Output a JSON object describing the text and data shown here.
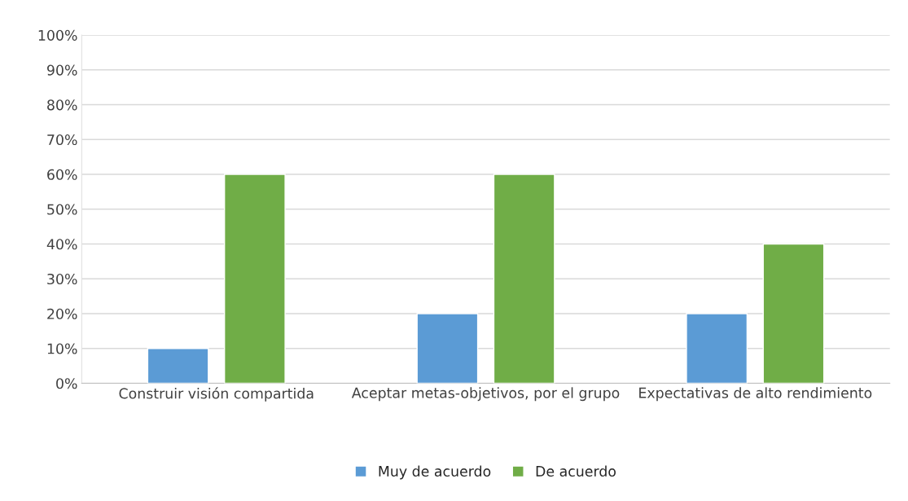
{
  "chart_data": {
    "type": "bar",
    "categories": [
      "Construir visión compartida",
      "Aceptar metas-objetivos, por el grupo",
      "Expectativas de alto rendimiento"
    ],
    "series": [
      {
        "name": "Muy de acuerdo",
        "color": "#5b9bd5",
        "values": [
          10,
          20,
          20
        ]
      },
      {
        "name": "De acuerdo",
        "color": "#70ad47",
        "values": [
          60,
          60,
          40
        ]
      }
    ],
    "ylim": [
      0,
      100
    ],
    "yticks": [
      {
        "value": 0,
        "label": "0%"
      },
      {
        "value": 10,
        "label": "10%"
      },
      {
        "value": 20,
        "label": "20%"
      },
      {
        "value": 30,
        "label": "30%"
      },
      {
        "value": 40,
        "label": "40%"
      },
      {
        "value": 50,
        "label": "50%"
      },
      {
        "value": 60,
        "label": "60%"
      },
      {
        "value": 70,
        "label": "70%"
      },
      {
        "value": 80,
        "label": "80%"
      },
      {
        "value": 90,
        "label": "90%"
      },
      {
        "value": 100,
        "label": "100%"
      }
    ],
    "grid": "y",
    "legend": "bottom"
  }
}
